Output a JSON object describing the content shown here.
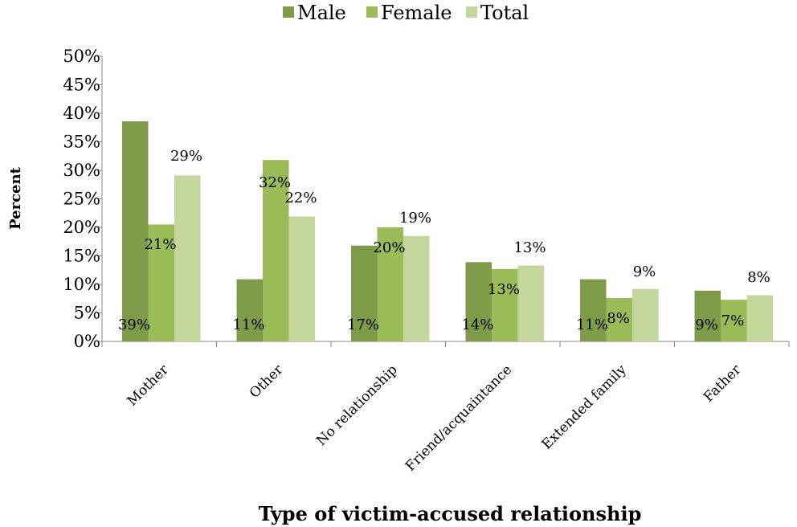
{
  "chart_data": {
    "type": "bar",
    "categories": [
      "Mother",
      "Other",
      "No relationship",
      "Friend/acquaintance",
      "Extended family",
      "Father"
    ],
    "series": [
      {
        "name": "Male",
        "color": "#7F9A48",
        "values": [
          38.6,
          10.9,
          16.8,
          13.9,
          10.9,
          8.9
        ]
      },
      {
        "name": "Female",
        "color": "#9BBB59",
        "values": [
          20.5,
          31.8,
          20.0,
          12.7,
          7.6,
          7.3
        ]
      },
      {
        "name": "Total",
        "color": "#C3D69B",
        "values": [
          29.1,
          21.9,
          18.5,
          13.3,
          9.2,
          8.1
        ]
      }
    ],
    "data_labels": [
      [
        "39%",
        "21%",
        "29%"
      ],
      [
        "11%",
        "32%",
        "22%"
      ],
      [
        "17%",
        "20%",
        "19%"
      ],
      [
        "14%",
        "13%",
        "13%"
      ],
      [
        "11%",
        "8%",
        "9%"
      ],
      [
        "9%",
        "7%",
        "8%"
      ]
    ],
    "title": "",
    "xlabel": "Type of victim-accused relationship",
    "ylabel": "Percent",
    "ylim": [
      0,
      50
    ],
    "yticks": [
      "0%",
      "5%",
      "10%",
      "15%",
      "20%",
      "25%",
      "30%",
      "35%",
      "40%",
      "45%",
      "50%"
    ],
    "grid": false,
    "legend_position": "top-center"
  }
}
